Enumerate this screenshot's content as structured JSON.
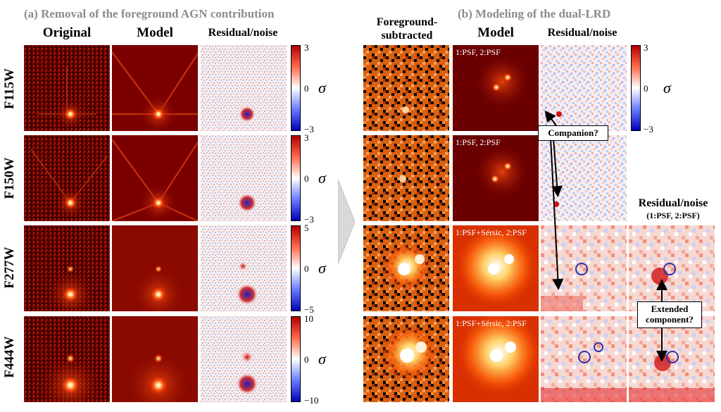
{
  "panel_a": {
    "title": "(a) Removal of the foreground AGN contribution",
    "columns": [
      "Original",
      "Model",
      "Residual/noise"
    ],
    "rows": [
      {
        "filter": "F115W",
        "cbar_ticks": [
          "3",
          "0",
          "−3"
        ]
      },
      {
        "filter": "F150W",
        "cbar_ticks": [
          "3",
          "0",
          "−3"
        ]
      },
      {
        "filter": "F277W",
        "cbar_ticks": [
          "5",
          "0",
          "−5"
        ]
      },
      {
        "filter": "F444W",
        "cbar_ticks": [
          "10",
          "0",
          "−10"
        ]
      }
    ],
    "sigma": "σ"
  },
  "panel_b": {
    "title": "(b) Modeling of the dual-LRD",
    "col_foreground": "Foreground-\nsubtracted",
    "col_model": "Model",
    "col_residual": "Residual/noise",
    "col_residual2_line1": "Residual/noise",
    "col_residual2_line2": "(1:PSF, 2:PSF)",
    "model_tags": [
      "1:PSF, 2:PSF",
      "1:PSF, 2:PSF",
      "1:PSF+Sérsic, 2:PSF",
      "1:PSF+Sérsic, 2:PSF"
    ],
    "cbar_ticks": [
      "3",
      "0",
      "−3"
    ],
    "sigma": "σ",
    "callout_companion": "Companion?",
    "callout_extended": "Extended\ncomponent?"
  }
}
